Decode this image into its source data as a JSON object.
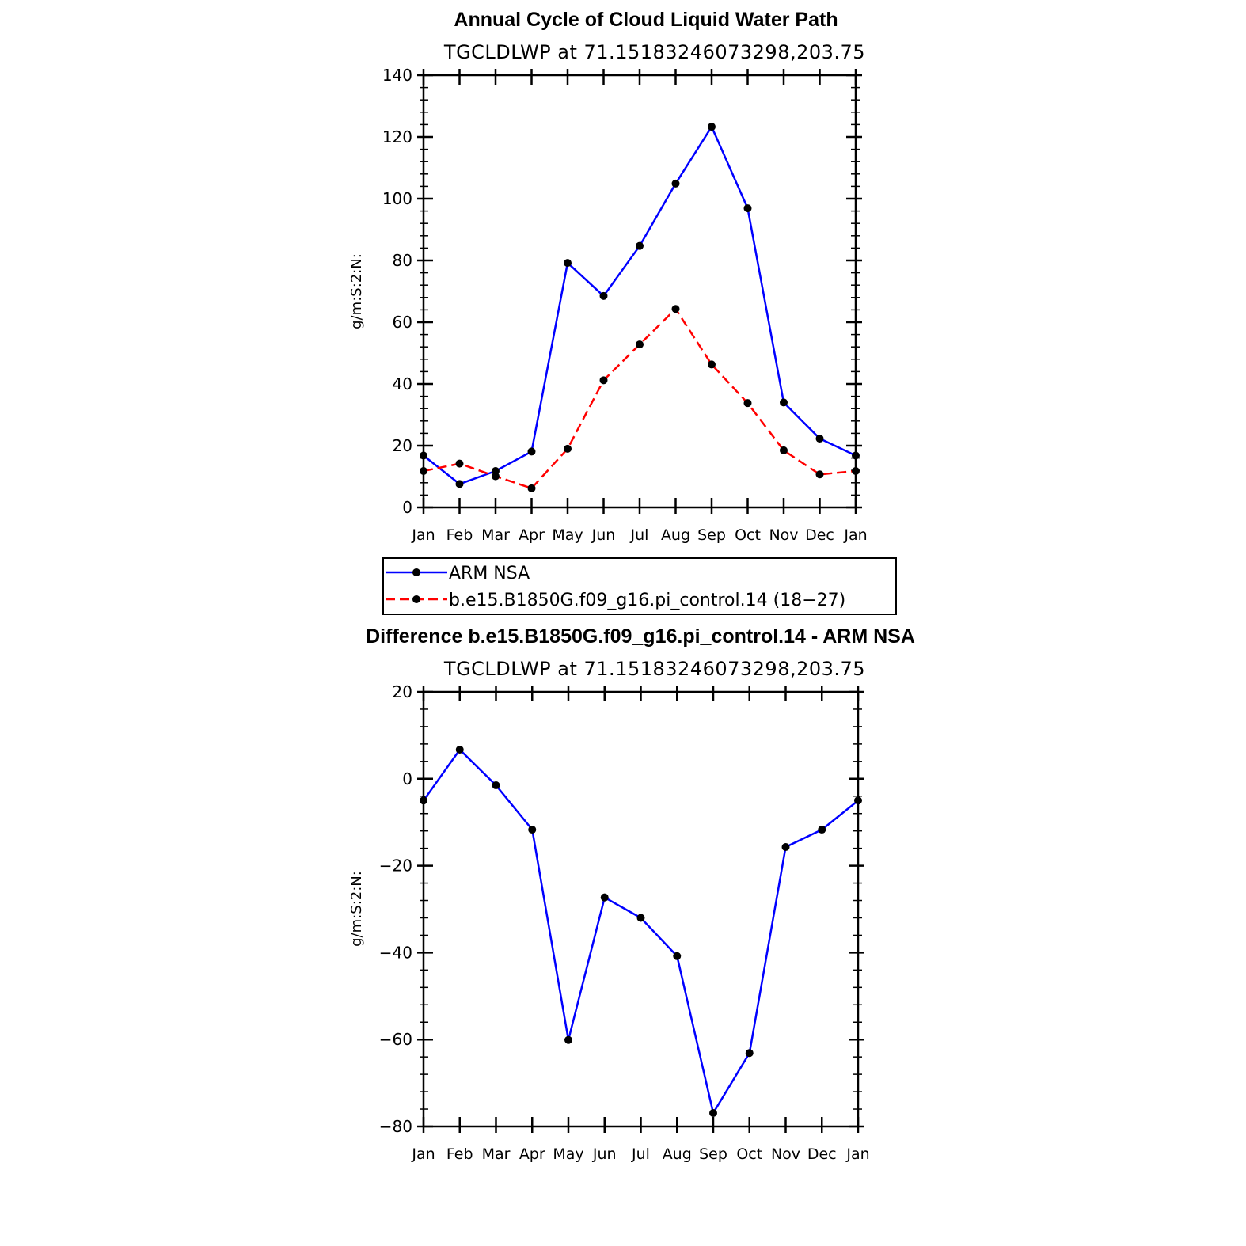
{
  "chart_data": [
    {
      "type": "line",
      "title": "Annual Cycle of Cloud Liquid Water Path",
      "subtitle": "TGCLDLWP  at  71.15183246073298,203.75",
      "ylabel": "g/m:S:2:N:",
      "xlabel": "",
      "categories": [
        "Jan",
        "Feb",
        "Mar",
        "Apr",
        "May",
        "Jun",
        "Jul",
        "Aug",
        "Sep",
        "Oct",
        "Nov",
        "Dec",
        "Jan"
      ],
      "ylim": [
        0,
        140
      ],
      "yticks": [
        0,
        20,
        40,
        60,
        80,
        100,
        120,
        140
      ],
      "series": [
        {
          "name": "ARM  NSA",
          "color": "#0000ff",
          "dash": "solid",
          "values": [
            16.8,
            7.6,
            11.8,
            18.1,
            79.2,
            68.5,
            84.7,
            104.9,
            123.3,
            96.9,
            34.0,
            22.3,
            16.8
          ]
        },
        {
          "name": "b.e15.B1850G.f09_g16.pi_control.14 (18−27)",
          "color": "#ff0000",
          "dash": "dashed",
          "values": [
            11.8,
            14.2,
            10.1,
            6.2,
            19.0,
            41.2,
            52.8,
            64.3,
            46.3,
            33.8,
            18.5,
            10.7,
            11.8
          ]
        }
      ],
      "legend_position": "below"
    },
    {
      "type": "line",
      "title": "Difference b.e15.B1850G.f09_g16.pi_control.14 - ARM NSA",
      "subtitle": "TGCLDLWP  at  71.15183246073298,203.75",
      "ylabel": "g/m:S:2:N:",
      "xlabel": "",
      "categories": [
        "Jan",
        "Feb",
        "Mar",
        "Apr",
        "May",
        "Jun",
        "Jul",
        "Aug",
        "Sep",
        "Oct",
        "Nov",
        "Dec",
        "Jan"
      ],
      "ylim": [
        -80,
        20
      ],
      "yticks": [
        -80,
        -60,
        -40,
        -20,
        0,
        20
      ],
      "ytick_labels": [
        "−80",
        "−60",
        "−40",
        "−20",
        "0",
        "20"
      ],
      "series": [
        {
          "name": "Difference",
          "color": "#0000ff",
          "dash": "solid",
          "values": [
            -5.0,
            6.7,
            -1.5,
            -11.7,
            -60.1,
            -27.3,
            -32.0,
            -40.8,
            -76.9,
            -63.1,
            -15.7,
            -11.7,
            -5.0
          ]
        }
      ]
    }
  ]
}
